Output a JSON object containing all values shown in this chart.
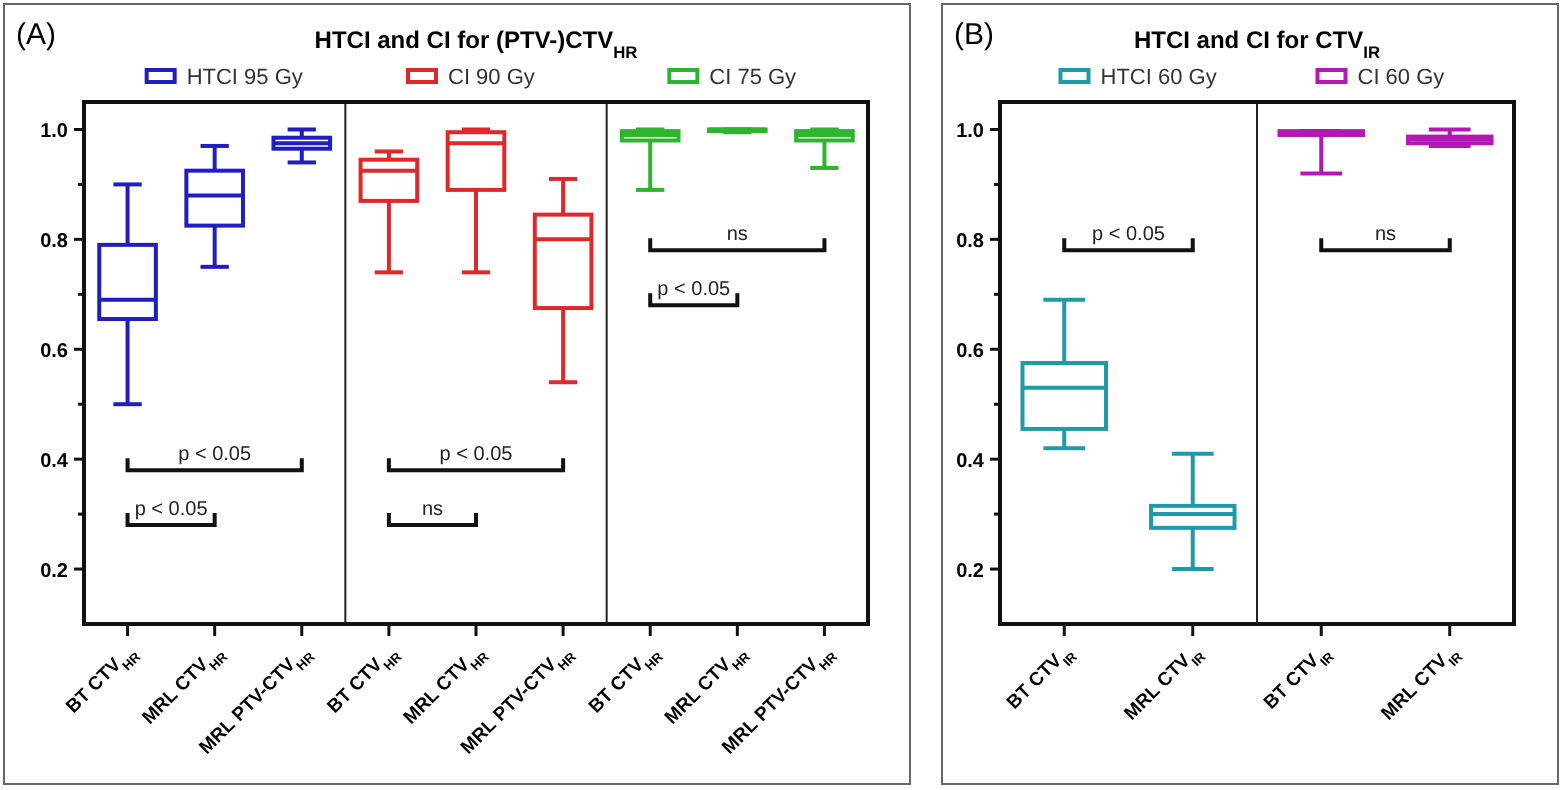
{
  "chart_data": [
    {
      "type": "box",
      "title": "HTCI and CI for (PTV-)CTV$_{HR}$",
      "subtitle": "(A)",
      "categories": [
        "BT CTV$_{HR}$",
        "MRL CTV$_{HR}$",
        "MRL PTV-CTV$_{HR}$",
        "BT CTV$_{HR}$",
        "MRL CTV$_{HR}$",
        "MRL PTV-CTV$_{HR}$",
        "BT CTV$_{HR}$",
        "MRL CTV$_{HR}$",
        "MRL PTV-CTV$_{HR}$"
      ],
      "ylim": [
        0.1,
        1.05
      ],
      "yticks": [
        {
          "value": 0.2,
          "label": "0.2"
        },
        {
          "value": 0.3,
          "label": null
        },
        {
          "value": 0.4,
          "label": "0.4"
        },
        {
          "value": 0.5,
          "label": null
        },
        {
          "value": 0.6,
          "label": "0.6"
        },
        {
          "value": 0.7,
          "label": null
        },
        {
          "value": 0.8,
          "label": "0.8"
        },
        {
          "value": 0.9,
          "label": null
        },
        {
          "value": 1,
          "label": "1.0"
        }
      ],
      "legend": "top",
      "grid": false,
      "series": [
        {
          "name": "HTCI 95 Gy",
          "color": "#1f1fbf",
          "boxes": [
            {
              "low": 0.5,
              "q1": 0.655,
              "median": 0.69,
              "q3": 0.79,
              "high": 0.9
            },
            {
              "low": 0.75,
              "q1": 0.825,
              "median": 0.88,
              "q3": 0.925,
              "high": 0.97
            },
            {
              "low": 0.94,
              "q1": 0.965,
              "median": 0.975,
              "q3": 0.985,
              "high": 1.0
            },
            null,
            null,
            null,
            null,
            null,
            null
          ]
        },
        {
          "name": "CI 90 Gy",
          "color": "#e0282a",
          "boxes": [
            null,
            null,
            null,
            {
              "low": 0.74,
              "q1": 0.87,
              "median": 0.925,
              "q3": 0.945,
              "high": 0.96
            },
            {
              "low": 0.74,
              "q1": 0.89,
              "median": 0.975,
              "q3": 0.995,
              "high": 1.0
            },
            {
              "low": 0.54,
              "q1": 0.675,
              "median": 0.8,
              "q3": 0.845,
              "high": 0.91
            },
            null,
            null,
            null
          ]
        },
        {
          "name": "CI 75 Gy",
          "color": "#2db52d",
          "boxes": [
            null,
            null,
            null,
            null,
            null,
            null,
            {
              "low": 0.89,
              "q1": 0.98,
              "median": 0.99,
              "q3": 0.997,
              "high": 1.0
            },
            {
              "low": 0.995,
              "q1": 0.997,
              "median": 1.0,
              "q3": 1.0,
              "high": 1.0
            },
            {
              "low": 0.93,
              "q1": 0.98,
              "median": 0.99,
              "q3": 0.997,
              "high": 1.0
            }
          ]
        }
      ],
      "annotations": [
        "p < 0.05",
        "p < 0.05",
        "p < 0.05",
        "ns",
        "ns",
        "p < 0.05"
      ]
    },
    {
      "type": "box",
      "title": "HTCI and CI for CTV$_{IR}$",
      "subtitle": "(B)",
      "categories": [
        "BT CTV$_{IR}$",
        "MRL CTV$_{IR}$",
        "BT CTV$_{IR}$",
        "MRL CTV$_{IR}$"
      ],
      "ylim": [
        0.1,
        1.05
      ],
      "yticks": [
        {
          "value": 0.2,
          "label": "0.2"
        },
        {
          "value": 0.3,
          "label": null
        },
        {
          "value": 0.4,
          "label": "0.4"
        },
        {
          "value": 0.5,
          "label": null
        },
        {
          "value": 0.6,
          "label": "0.6"
        },
        {
          "value": 0.7,
          "label": null
        },
        {
          "value": 0.8,
          "label": "0.8"
        },
        {
          "value": 0.9,
          "label": null
        },
        {
          "value": 1,
          "label": "1.0"
        }
      ],
      "legend": "top",
      "grid": false,
      "series": [
        {
          "name": "HTCI 60 Gy",
          "color": "#1f9aa8",
          "boxes": [
            {
              "low": 0.42,
              "q1": 0.455,
              "median": 0.53,
              "q3": 0.575,
              "high": 0.69
            },
            {
              "low": 0.2,
              "q1": 0.275,
              "median": 0.3,
              "q3": 0.315,
              "high": 0.41
            },
            null,
            null
          ]
        },
        {
          "name": "CI 60 Gy",
          "color": "#b418b4",
          "boxes": [
            null,
            null,
            {
              "low": 0.92,
              "q1": 0.99,
              "median": 0.993,
              "q3": 0.997,
              "high": 0.997
            },
            {
              "low": 0.97,
              "q1": 0.975,
              "median": 0.982,
              "q3": 0.987,
              "high": 1.0
            }
          ]
        }
      ],
      "annotations": [
        "p < 0.05",
        "ns"
      ]
    }
  ]
}
